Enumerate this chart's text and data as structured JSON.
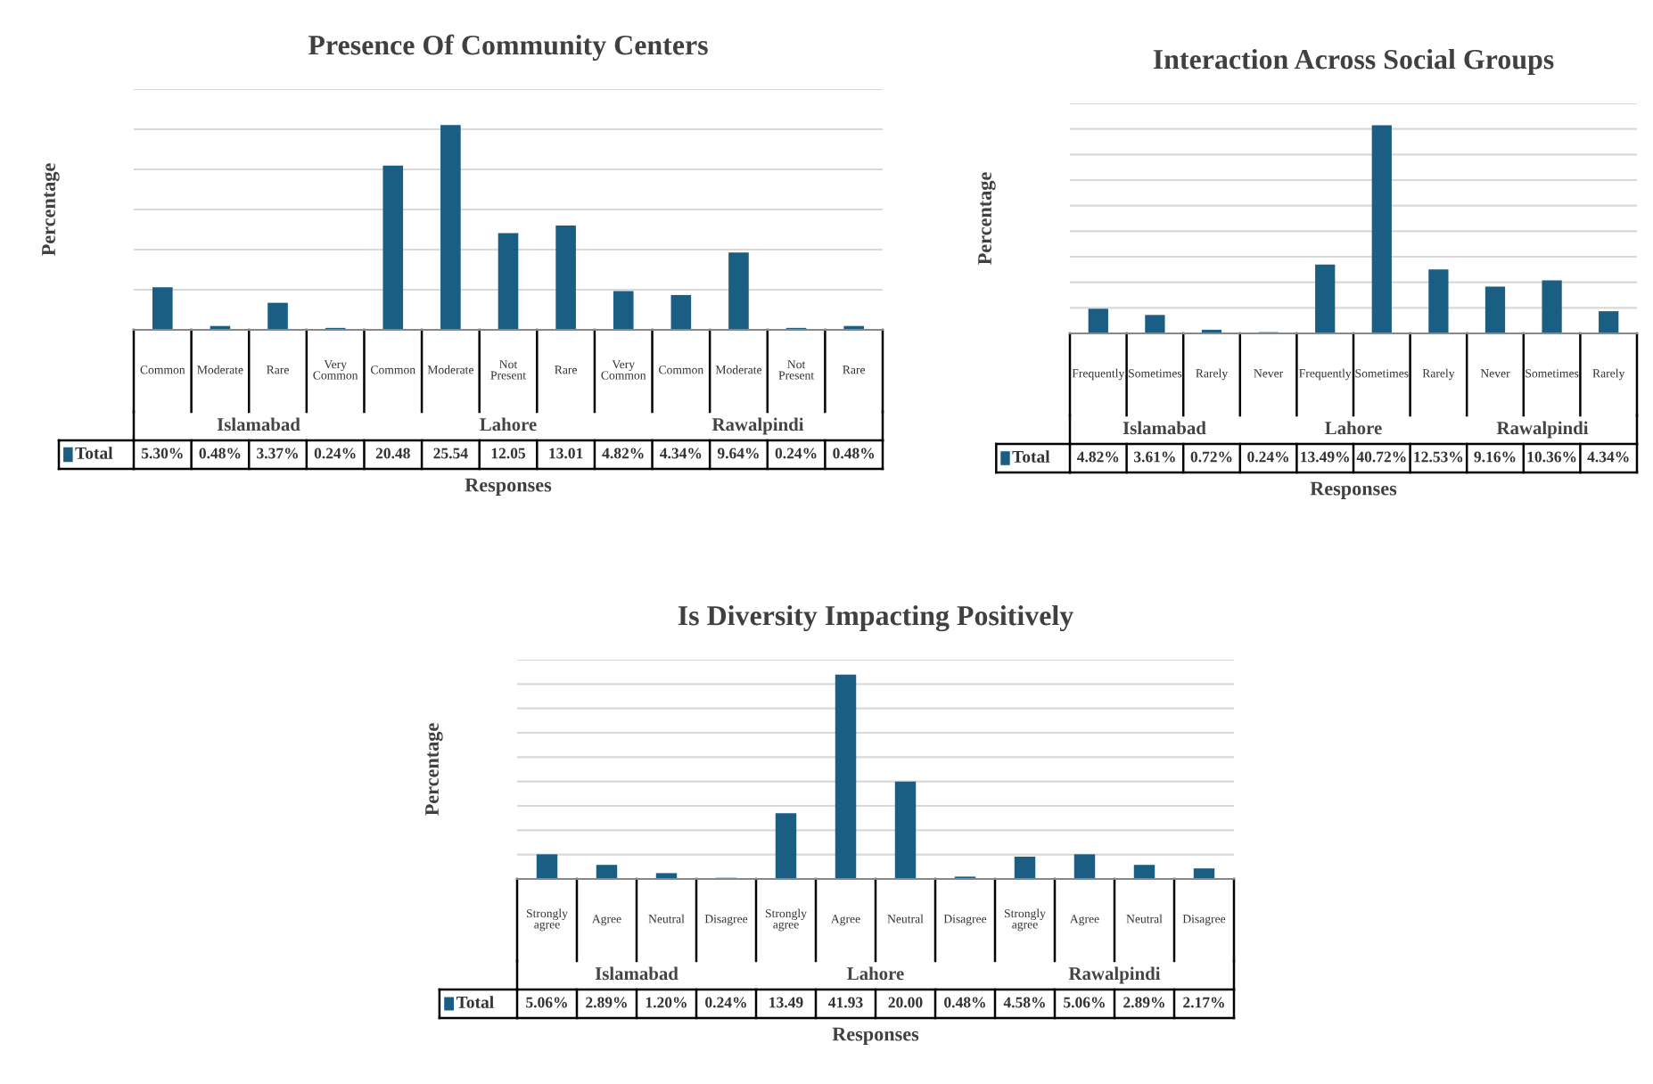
{
  "chart_data": [
    {
      "type": "bar",
      "title": "Presence Of Community Centers",
      "xlabel": "Responses",
      "ylabel": "Percentage",
      "categories": [
        "Common",
        "Moderate",
        "Rare",
        "Very Common",
        "Common",
        "Moderate",
        "Not Present",
        "Rare",
        "Very Common",
        "Common",
        "Moderate",
        "Not Present",
        "Rare"
      ],
      "series": [
        {
          "name": "Total",
          "color": "#1b5e84",
          "values": [
            5.3,
            0.48,
            3.37,
            0.24,
            20.48,
            25.54,
            12.05,
            13.01,
            4.82,
            4.34,
            9.64,
            0.24,
            0.48
          ],
          "value_labels": [
            "5.30%",
            "0.48%",
            "3.37%",
            "0.24%",
            "20.48",
            "25.54",
            "12.05",
            "13.01",
            "4.82%",
            "4.34%",
            "9.64%",
            "0.24%",
            "0.48%"
          ]
        }
      ],
      "annotations": [
        "Islamabad",
        "Lahore",
        "Rawalpindi"
      ],
      "ylim": [
        0,
        30
      ],
      "yticks": [
        {
          "value": 0,
          "label": null
        },
        {
          "value": 5,
          "label": null
        },
        {
          "value": 10,
          "label": null
        },
        {
          "value": 15,
          "label": null
        },
        {
          "value": 20,
          "label": null
        },
        {
          "value": 25,
          "label": null
        },
        {
          "value": 30,
          "label": null
        }
      ],
      "grid": "y",
      "tick_labels": "x"
    },
    {
      "type": "bar",
      "title": "Interaction Across Social Groups",
      "xlabel": "Responses",
      "ylabel": "Percentage",
      "categories": [
        "Frequently",
        "Sometimes",
        "Rarely",
        "Never",
        "Frequently",
        "Sometimes",
        "Rarely",
        "Never",
        "Sometimes",
        "Rarely"
      ],
      "series": [
        {
          "name": "Total",
          "color": "#1b5e84",
          "values": [
            4.82,
            3.61,
            0.72,
            0.24,
            13.49,
            40.72,
            12.53,
            9.16,
            10.36,
            4.34
          ],
          "value_labels": [
            "4.82%",
            "3.61%",
            "0.72%",
            "0.24%",
            "13.49%",
            "40.72%",
            "12.53%",
            "9.16%",
            "10.36%",
            "4.34%"
          ]
        }
      ],
      "annotations": [
        "Islamabad",
        "Lahore",
        "Rawalpindi"
      ],
      "ylim": [
        0,
        45
      ],
      "yticks": [
        {
          "value": 0,
          "label": null
        },
        {
          "value": 5,
          "label": null
        },
        {
          "value": 10,
          "label": null
        },
        {
          "value": 15,
          "label": null
        },
        {
          "value": 20,
          "label": null
        },
        {
          "value": 25,
          "label": null
        },
        {
          "value": 30,
          "label": null
        },
        {
          "value": 35,
          "label": null
        },
        {
          "value": 40,
          "label": null
        },
        {
          "value": 45,
          "label": null
        }
      ],
      "grid": "y",
      "tick_labels": "x"
    },
    {
      "type": "bar",
      "title": "Is Diversity Impacting Positively",
      "xlabel": "Responses",
      "ylabel": "Percentage",
      "categories": [
        "Strongly agree",
        "Agree",
        "Neutral",
        "Disagree",
        "Strongly agree",
        "Agree",
        "Neutral",
        "Disagree",
        "Strongly agree",
        "Agree",
        "Neutral",
        "Disagree"
      ],
      "series": [
        {
          "name": "Total",
          "color": "#1b5e84",
          "values": [
            5.06,
            2.89,
            1.2,
            0.24,
            13.49,
            41.93,
            20.0,
            0.48,
            4.58,
            5.06,
            2.89,
            2.17
          ],
          "value_labels": [
            "5.06%",
            "2.89%",
            "1.20%",
            "0.24%",
            "13.49",
            "41.93",
            "20.00",
            "0.48%",
            "4.58%",
            "5.06%",
            "2.89%",
            "2.17%"
          ]
        }
      ],
      "annotations": [
        "Islamabad",
        "Lahore",
        "Rawalpindi"
      ],
      "ylim": [
        0,
        45
      ],
      "yticks": [
        {
          "value": 0,
          "label": null
        },
        {
          "value": 5,
          "label": null
        },
        {
          "value": 10,
          "label": null
        },
        {
          "value": 15,
          "label": null
        },
        {
          "value": 20,
          "label": null
        },
        {
          "value": 25,
          "label": null
        },
        {
          "value": 30,
          "label": null
        },
        {
          "value": 35,
          "label": null
        },
        {
          "value": 40,
          "label": null
        },
        {
          "value": 45,
          "label": null
        }
      ],
      "grid": "y",
      "tick_labels": "x"
    }
  ]
}
